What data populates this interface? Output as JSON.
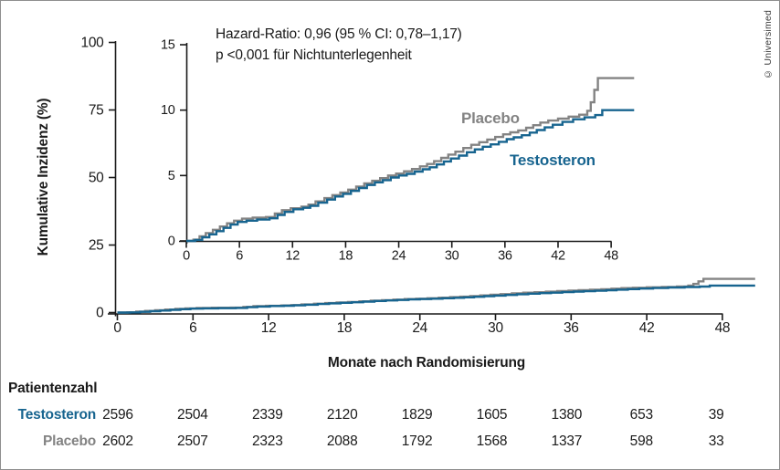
{
  "copyright_label": "© Universimed",
  "annotation": {
    "line1": "Hazard-Ratio: 0,96 (95 % CI: 0,78–1,17)",
    "line2": "p <0,001 für Nichtunterlegenheit"
  },
  "colors": {
    "testosteron": "#17648f",
    "placebo": "#838383",
    "axis": "#1a1a1a"
  },
  "chart_data": {
    "type": "line",
    "step": true,
    "xlabel": "Monate nach Randomisierung",
    "ylabel": "Kumulative Inzidenz (%)",
    "x_ticks": [
      0,
      6,
      12,
      18,
      24,
      30,
      36,
      42,
      48
    ],
    "x_max_drawn": 50.6,
    "main_axis": {
      "ylim": [
        0,
        100
      ],
      "y_ticks": [
        0,
        25,
        50,
        75,
        100
      ]
    },
    "inset_axis": {
      "ylim": [
        0,
        15
      ],
      "y_ticks": [
        0,
        5,
        10,
        15
      ]
    },
    "legend_position": "inline-labels-in-inset",
    "grid": false,
    "series": [
      {
        "name": "Placebo",
        "color": "#838383",
        "points": [
          [
            0,
            0
          ],
          [
            0.8,
            0.1
          ],
          [
            1.5,
            0.35
          ],
          [
            2.2,
            0.6
          ],
          [
            3,
            0.85
          ],
          [
            3.8,
            1.1
          ],
          [
            4.6,
            1.35
          ],
          [
            5.4,
            1.55
          ],
          [
            6.3,
            1.7
          ],
          [
            7.5,
            1.78
          ],
          [
            9,
            1.83
          ],
          [
            10,
            2.1
          ],
          [
            10.8,
            2.35
          ],
          [
            11.8,
            2.5
          ],
          [
            13,
            2.62
          ],
          [
            13.8,
            2.78
          ],
          [
            14.6,
            3.02
          ],
          [
            15.6,
            3.27
          ],
          [
            16.5,
            3.5
          ],
          [
            17.4,
            3.7
          ],
          [
            18.3,
            3.92
          ],
          [
            19.2,
            4.15
          ],
          [
            20.1,
            4.4
          ],
          [
            21,
            4.6
          ],
          [
            21.9,
            4.8
          ],
          [
            22.8,
            5
          ],
          [
            23.7,
            5.15
          ],
          [
            24.6,
            5.32
          ],
          [
            25.5,
            5.5
          ],
          [
            26.4,
            5.7
          ],
          [
            27.2,
            5.88
          ],
          [
            28,
            6.1
          ],
          [
            28.8,
            6.35
          ],
          [
            29.6,
            6.6
          ],
          [
            30.4,
            6.82
          ],
          [
            31.3,
            7.1
          ],
          [
            32.2,
            7.35
          ],
          [
            33.1,
            7.55
          ],
          [
            34,
            7.75
          ],
          [
            34.9,
            7.95
          ],
          [
            35.8,
            8.15
          ],
          [
            36.6,
            8.3
          ],
          [
            37.5,
            8.45
          ],
          [
            38.4,
            8.65
          ],
          [
            39.2,
            8.85
          ],
          [
            40,
            9.05
          ],
          [
            40.9,
            9.2
          ],
          [
            42,
            9.35
          ],
          [
            43.2,
            9.5
          ],
          [
            44.4,
            9.65
          ],
          [
            45.3,
            9.95
          ],
          [
            45.7,
            10.6
          ],
          [
            46.1,
            11.55
          ],
          [
            46.5,
            12.45
          ]
        ]
      },
      {
        "name": "Testosteron",
        "color": "#17648f",
        "points": [
          [
            0,
            0
          ],
          [
            1,
            0.08
          ],
          [
            1.8,
            0.28
          ],
          [
            2.6,
            0.5
          ],
          [
            3.4,
            0.75
          ],
          [
            4.2,
            1
          ],
          [
            5,
            1.25
          ],
          [
            5.8,
            1.45
          ],
          [
            6.8,
            1.55
          ],
          [
            8,
            1.63
          ],
          [
            9.4,
            1.73
          ],
          [
            10.3,
            1.98
          ],
          [
            11.1,
            2.22
          ],
          [
            12.1,
            2.42
          ],
          [
            13.2,
            2.53
          ],
          [
            14,
            2.68
          ],
          [
            14.9,
            2.92
          ],
          [
            15.9,
            3.16
          ],
          [
            16.8,
            3.4
          ],
          [
            17.7,
            3.6
          ],
          [
            18.6,
            3.82
          ],
          [
            19.5,
            4.05
          ],
          [
            20.4,
            4.28
          ],
          [
            21.3,
            4.48
          ],
          [
            22.2,
            4.65
          ],
          [
            23.1,
            4.85
          ],
          [
            24,
            5
          ],
          [
            24.9,
            5.13
          ],
          [
            25.8,
            5.3
          ],
          [
            26.7,
            5.48
          ],
          [
            27.5,
            5.63
          ],
          [
            28.3,
            5.85
          ],
          [
            29.1,
            6.08
          ],
          [
            29.9,
            6.3
          ],
          [
            30.8,
            6.52
          ],
          [
            31.7,
            6.78
          ],
          [
            32.6,
            7
          ],
          [
            33.5,
            7.2
          ],
          [
            34.4,
            7.38
          ],
          [
            35.3,
            7.58
          ],
          [
            36.2,
            7.78
          ],
          [
            37,
            7.92
          ],
          [
            37.9,
            8.08
          ],
          [
            38.8,
            8.28
          ],
          [
            39.6,
            8.48
          ],
          [
            40.5,
            8.68
          ],
          [
            41.4,
            8.88
          ],
          [
            42.5,
            9.1
          ],
          [
            43.7,
            9.3
          ],
          [
            45,
            9.45
          ],
          [
            46.2,
            9.62
          ],
          [
            47,
            10
          ]
        ]
      }
    ]
  },
  "risk_table": {
    "title": "Patientenzahl",
    "months": [
      0,
      6,
      12,
      18,
      24,
      30,
      36,
      42,
      48
    ],
    "rows": [
      {
        "label": "Testosteron",
        "color": "#17648f",
        "values": [
          2596,
          2504,
          2339,
          2120,
          1829,
          1605,
          1380,
          653,
          39
        ]
      },
      {
        "label": "Placebo",
        "color": "#838383",
        "values": [
          2602,
          2507,
          2323,
          2088,
          1792,
          1568,
          1337,
          598,
          33
        ]
      }
    ]
  }
}
